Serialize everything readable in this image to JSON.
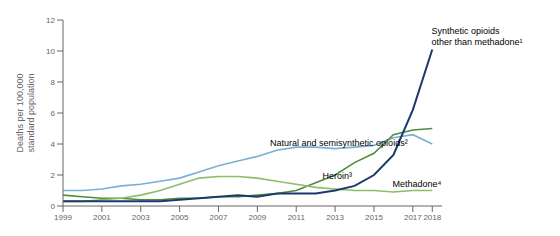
{
  "chart_data": {
    "type": "line",
    "x": [
      1999,
      2000,
      2001,
      2002,
      2003,
      2004,
      2005,
      2006,
      2007,
      2008,
      2009,
      2010,
      2011,
      2012,
      2013,
      2014,
      2015,
      2016,
      2017,
      2018
    ],
    "series": [
      {
        "name": "Natural and semisynthetic opioids",
        "color": "#7bafd4",
        "values": [
          1.0,
          1.0,
          1.1,
          1.3,
          1.4,
          1.6,
          1.8,
          2.2,
          2.6,
          2.9,
          3.2,
          3.6,
          3.8,
          3.8,
          3.7,
          3.8,
          3.9,
          4.4,
          4.6,
          4.0
        ]
      },
      {
        "name": "Heroin",
        "color": "#4f8c3e",
        "values": [
          0.7,
          0.6,
          0.5,
          0.5,
          0.4,
          0.4,
          0.5,
          0.5,
          0.6,
          0.6,
          0.7,
          0.8,
          1.0,
          1.5,
          2.0,
          2.8,
          3.4,
          4.6,
          4.9,
          5.0
        ]
      },
      {
        "name": "Methadone",
        "color": "#8abf6a",
        "values": [
          0.3,
          0.3,
          0.4,
          0.5,
          0.7,
          1.0,
          1.4,
          1.8,
          1.9,
          1.9,
          1.8,
          1.6,
          1.4,
          1.2,
          1.1,
          1.0,
          1.0,
          0.9,
          1.0,
          1.0
        ]
      },
      {
        "name": "Synthetic opioids other than methadone",
        "color": "#1b3a6b",
        "values": [
          0.3,
          0.3,
          0.3,
          0.3,
          0.3,
          0.3,
          0.4,
          0.5,
          0.6,
          0.7,
          0.6,
          0.8,
          0.8,
          0.8,
          1.0,
          1.3,
          2.0,
          3.3,
          6.2,
          10.1
        ]
      }
    ],
    "ylabel": "Deaths per 100,000\nstandard population",
    "xlim": [
      1999,
      2018.5
    ],
    "xticks": [
      1999,
      2001,
      2003,
      2005,
      2007,
      2009,
      2011,
      2013,
      2015,
      2017,
      2018
    ],
    "ylim": [
      0,
      12
    ],
    "yticks": [
      0,
      2,
      4,
      6,
      8,
      10,
      12
    ],
    "grid": false,
    "legend": false,
    "annotations": [
      {
        "text": "Synthetic opioids\nother than methadone¹",
        "x": 2017.8,
        "y": 10.1
      },
      {
        "text": "Natural and semisynthetic opioids²",
        "x": 2009.5,
        "y": 3.6
      },
      {
        "text": "Heroin³",
        "x": 2012.2,
        "y": 1.5
      },
      {
        "text": "Methadone⁴",
        "x": 2015.8,
        "y": 1.0
      }
    ]
  }
}
